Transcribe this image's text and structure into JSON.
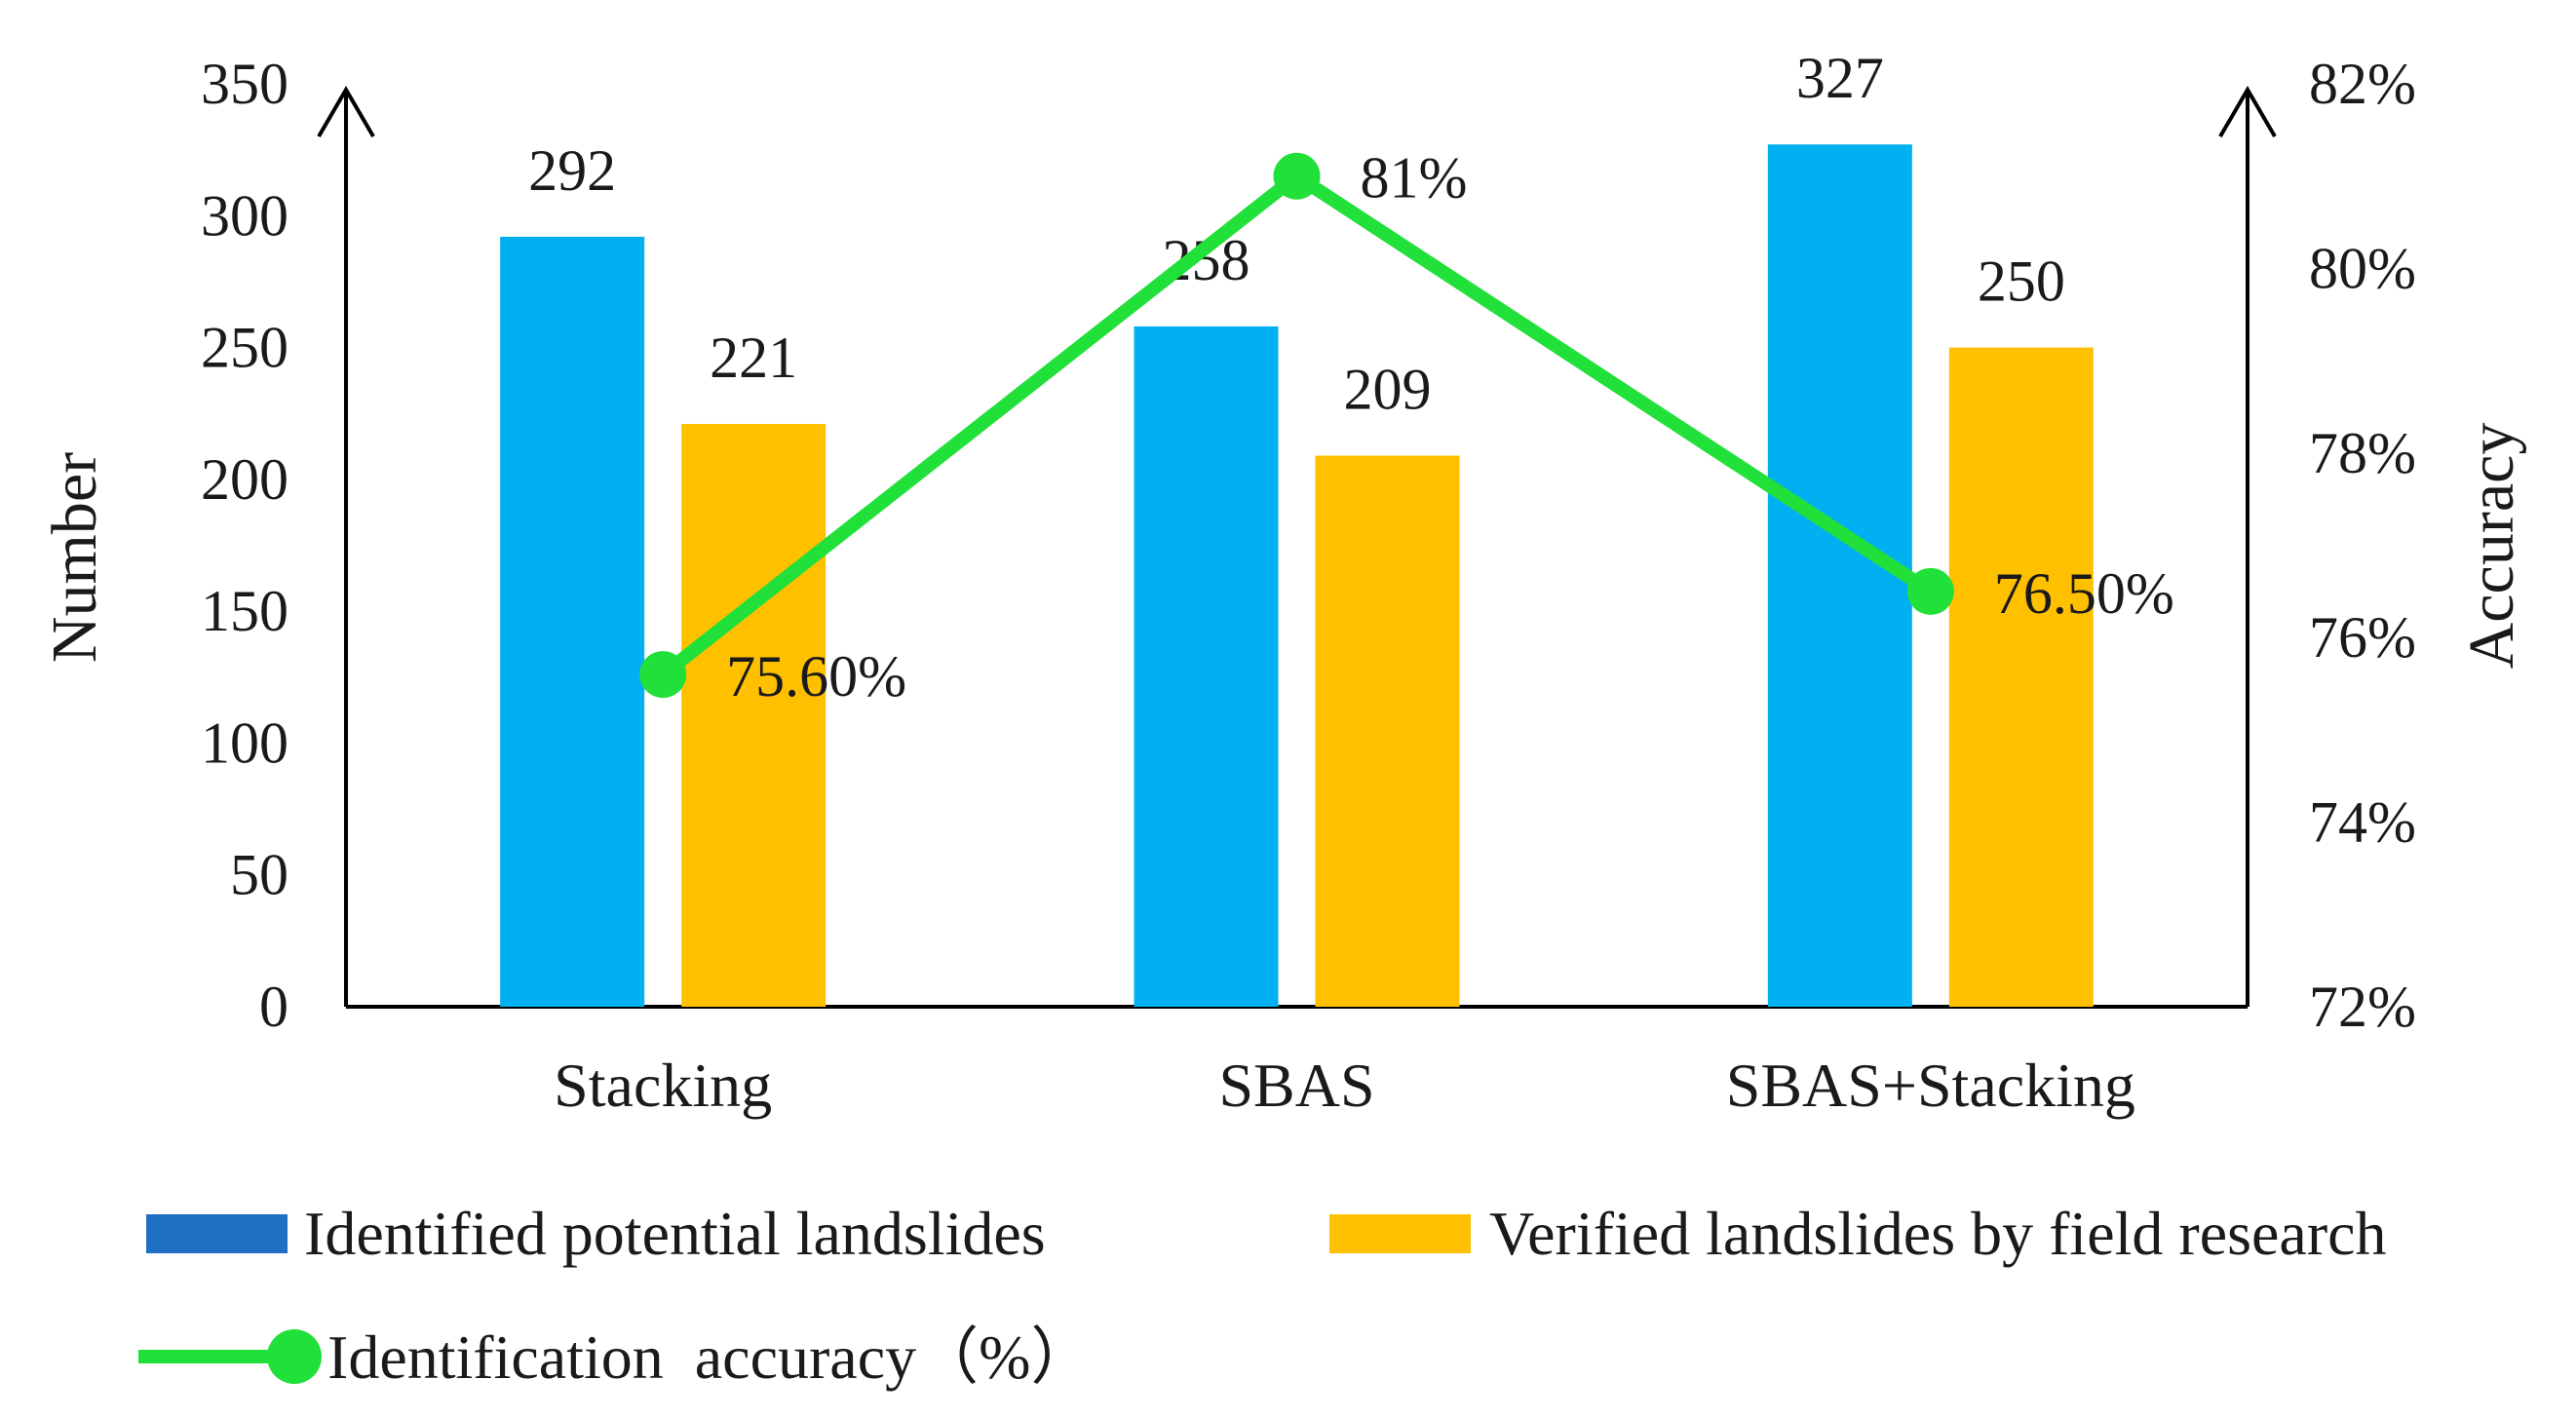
{
  "chart_data": {
    "type": "bar",
    "title": "",
    "categories": [
      "Stacking",
      "SBAS",
      "SBAS+Stacking"
    ],
    "xlabel": "",
    "ylabel": "Number",
    "ylim": [
      0,
      350
    ],
    "y_ticks": [
      "0",
      "50",
      "100",
      "150",
      "200",
      "250",
      "300",
      "350"
    ],
    "y2label": "Accuracy",
    "y2lim": [
      72,
      82
    ],
    "y2_ticks": [
      "72%",
      "74%",
      "76%",
      "78%",
      "80%",
      "82%"
    ],
    "series": [
      {
        "name": "Identified potential landslides",
        "type": "bar",
        "axis": "left",
        "color": "#00B0F0",
        "legend_color": "#1F6FC5",
        "values": [
          292,
          258,
          327
        ],
        "labels": [
          "292",
          "258",
          "327"
        ]
      },
      {
        "name": "Verified landslides by field research",
        "type": "bar",
        "axis": "left",
        "color": "#FFC000",
        "legend_color": "#FFC000",
        "values": [
          221,
          209,
          250
        ],
        "labels": [
          "221",
          "209",
          "250"
        ]
      },
      {
        "name": "Identification  accuracy（%）",
        "type": "line",
        "axis": "right",
        "color": "#22E03A",
        "values": [
          75.6,
          81,
          76.5
        ],
        "labels": [
          "75.60%",
          "81%",
          "76.50%"
        ]
      }
    ],
    "legend_position": "bottom",
    "grid": false
  }
}
